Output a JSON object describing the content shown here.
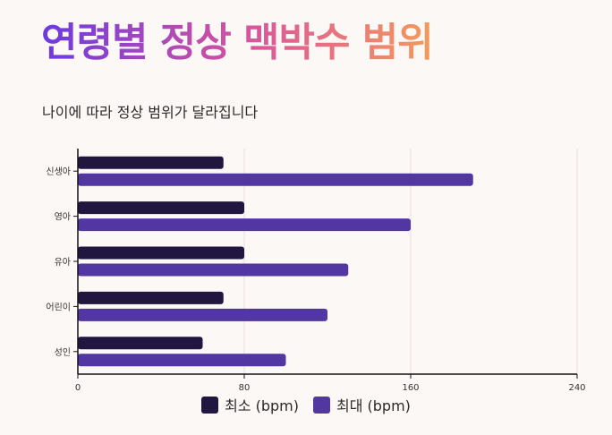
{
  "title": "연령별 정상 맥박수 범위",
  "subtitle": "나이에 따라 정상 범위가 달라집니다",
  "colors": {
    "min": "#21163f",
    "max": "#5236a2",
    "grid": "#e6e0dc",
    "axis": "#111111"
  },
  "chart_data": {
    "type": "bar",
    "orientation": "horizontal",
    "categories": [
      "신생아",
      "영아",
      "유아",
      "어린이",
      "성인"
    ],
    "series": [
      {
        "name": "최소 (bpm)",
        "values": [
          70,
          80,
          80,
          70,
          60
        ]
      },
      {
        "name": "최대 (bpm)",
        "values": [
          190,
          160,
          130,
          120,
          100
        ]
      }
    ],
    "xlim": [
      0,
      240
    ],
    "xticks": [
      0,
      80,
      160,
      240
    ],
    "grid": true,
    "legend_position": "bottom"
  }
}
